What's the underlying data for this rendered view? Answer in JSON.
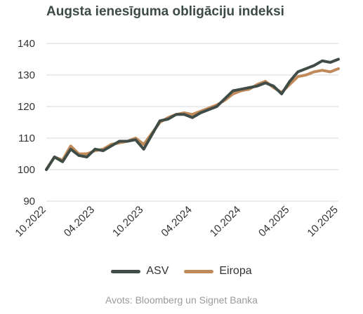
{
  "title": "Augsta ienesīguma obligāciju indeksi",
  "source": "Avots: Bloomberg un Signet Banka",
  "colors": {
    "ASV": "#3f4d46",
    "Eiropa": "#c08a5a",
    "grid": "#d9d9d9",
    "axis_text": "#333333"
  },
  "chart_data": {
    "type": "line",
    "title": "Augsta ienesīguma obligāciju indeksi",
    "xlabel": "",
    "ylabel": "",
    "ylim": [
      90,
      140
    ],
    "yticks": [
      90,
      100,
      110,
      120,
      130,
      140
    ],
    "xlim": [
      "10.2022",
      "10.2025"
    ],
    "xticks": [
      "10.2022",
      "04.2023",
      "10.2023",
      "04.2024",
      "10.2024",
      "04.2025",
      "10.2025"
    ],
    "x": [
      "10.2022",
      "11.2022",
      "12.2022",
      "01.2023",
      "02.2023",
      "03.2023",
      "04.2023",
      "05.2023",
      "06.2023",
      "07.2023",
      "08.2023",
      "09.2023",
      "10.2023",
      "11.2023",
      "12.2023",
      "01.2024",
      "02.2024",
      "03.2024",
      "04.2024",
      "05.2024",
      "06.2024",
      "07.2024",
      "08.2024",
      "09.2024",
      "10.2024",
      "11.2024",
      "12.2024",
      "01.2025",
      "02.2025",
      "03.2025",
      "04.2025",
      "05.2025",
      "06.2025",
      "07.2025",
      "08.2025",
      "09.2025",
      "10.2025"
    ],
    "series": [
      {
        "name": "ASV",
        "values": [
          100,
          104,
          102.5,
          106.5,
          104.5,
          104,
          106.5,
          106,
          107.5,
          109,
          109,
          109.5,
          106.5,
          111,
          115.5,
          116,
          117.5,
          117.5,
          116.5,
          118,
          119,
          120,
          122.5,
          125,
          125.5,
          126,
          126.5,
          127.5,
          126.5,
          124,
          128,
          131,
          132,
          133,
          134.5,
          134,
          135
        ]
      },
      {
        "name": "Eiropa",
        "values": [
          100,
          104,
          103,
          107.5,
          105,
          105,
          106,
          106.5,
          108,
          108.5,
          109,
          110,
          108,
          111.5,
          115,
          116.5,
          117.5,
          118,
          117.5,
          118.5,
          119.5,
          120.5,
          122,
          124,
          125,
          125.5,
          127,
          128,
          126,
          124.5,
          127,
          129.5,
          130,
          131,
          131.5,
          131,
          132
        ]
      }
    ]
  }
}
